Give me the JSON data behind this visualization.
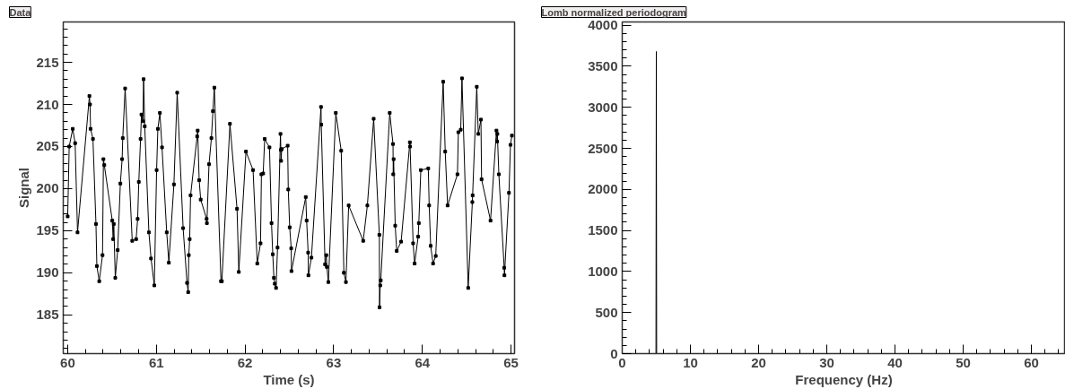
{
  "chart_data": [
    {
      "type": "line",
      "title": "Data",
      "xlabel": "Time (s)",
      "ylabel": "Signal",
      "xlim": [
        59.95,
        65.04
      ],
      "ylim": [
        180.4,
        219.8
      ],
      "xticks": [
        60,
        61,
        62,
        63,
        64,
        65
      ],
      "yticks": [
        185,
        190,
        195,
        200,
        205,
        210,
        215
      ],
      "grid": false,
      "marker": "square",
      "line_style": "solid",
      "series": [
        {
          "color": "#000000",
          "x": [
            60.0,
            60.017,
            60.057,
            60.084,
            60.111,
            60.245,
            60.252,
            60.258,
            60.285,
            60.319,
            60.329,
            60.356,
            60.393,
            60.403,
            60.413,
            60.503,
            60.513,
            60.52,
            60.537,
            60.564,
            60.594,
            60.614,
            60.621,
            60.648,
            60.728,
            60.772,
            60.789,
            60.802,
            60.822,
            60.832,
            60.849,
            60.856,
            60.869,
            60.916,
            60.94,
            60.977,
            61.003,
            61.017,
            61.04,
            61.064,
            61.117,
            61.141,
            61.198,
            61.235,
            61.302,
            61.346,
            61.359,
            61.366,
            61.376,
            61.386,
            61.46,
            61.466,
            61.483,
            61.5,
            61.567,
            61.57,
            61.594,
            61.621,
            61.638,
            61.654,
            61.729,
            61.739,
            61.83,
            61.91,
            61.93,
            62.011,
            62.091,
            62.138,
            62.175,
            62.185,
            62.205,
            62.222,
            62.276,
            62.299,
            62.313,
            62.326,
            62.336,
            62.35,
            62.367,
            62.4,
            62.404,
            62.407,
            62.414,
            62.481,
            62.488,
            62.504,
            62.521,
            62.524,
            62.685,
            62.695,
            62.712,
            62.715,
            62.749,
            62.857,
            62.86,
            62.903,
            62.917,
            62.923,
            62.94,
            63.024,
            63.085,
            63.115,
            63.138,
            63.169,
            63.333,
            63.38,
            63.451,
            63.515,
            63.517,
            63.525,
            63.531,
            63.632,
            63.669,
            63.672,
            63.676,
            63.694,
            63.711,
            63.761,
            63.859,
            63.862,
            63.896,
            63.913,
            63.953,
            63.96,
            63.983,
            64.067,
            64.077,
            64.094,
            64.121,
            64.151,
            64.235,
            64.258,
            64.285,
            64.396,
            64.406,
            64.433,
            64.447,
            64.517,
            64.564,
            64.567,
            64.614,
            64.631,
            64.661,
            64.668,
            64.769,
            64.836,
            64.843,
            64.846,
            64.863,
            64.923,
            64.926,
            64.977,
            64.994,
            65.01
          ],
          "values": [
            196.7,
            205.0,
            207.1,
            205.4,
            194.8,
            211.0,
            210.0,
            207.1,
            205.9,
            195.8,
            190.8,
            189.0,
            192.1,
            203.5,
            202.8,
            196.2,
            194.0,
            195.8,
            189.4,
            192.7,
            200.6,
            203.5,
            206.0,
            211.9,
            193.8,
            194.0,
            196.4,
            200.8,
            205.9,
            208.8,
            208.0,
            213.0,
            207.4,
            194.8,
            191.7,
            188.5,
            202.2,
            207.1,
            209.0,
            204.9,
            194.8,
            191.2,
            200.5,
            211.4,
            195.3,
            188.8,
            187.7,
            192.1,
            194.0,
            199.2,
            206.2,
            206.9,
            201.0,
            198.7,
            196.4,
            195.9,
            202.9,
            206.0,
            209.2,
            212.0,
            189.0,
            189.0,
            207.7,
            197.6,
            190.1,
            204.4,
            202.2,
            191.1,
            193.5,
            201.7,
            201.8,
            205.9,
            204.9,
            195.9,
            192.2,
            189.4,
            188.7,
            188.2,
            193.0,
            206.5,
            204.6,
            203.3,
            204.7,
            205.1,
            199.9,
            195.4,
            192.9,
            190.2,
            199.0,
            196.2,
            192.4,
            189.7,
            191.8,
            209.7,
            207.6,
            191.0,
            192.1,
            190.7,
            188.9,
            209.0,
            204.5,
            190.0,
            188.9,
            198.0,
            193.8,
            198.0,
            208.3,
            194.5,
            185.9,
            188.5,
            189.1,
            209.0,
            205.3,
            201.7,
            203.5,
            195.6,
            192.6,
            193.7,
            205.5,
            205.0,
            193.5,
            191.1,
            194.3,
            195.9,
            202.2,
            202.4,
            198.0,
            193.2,
            191.1,
            192.0,
            212.7,
            204.4,
            198.0,
            201.7,
            206.7,
            207.0,
            213.1,
            188.2,
            198.4,
            199.2,
            212.1,
            206.5,
            208.2,
            201.1,
            196.2,
            206.9,
            205.6,
            206.5,
            201.7,
            190.6,
            189.7,
            199.5,
            205.2,
            206.3
          ]
        }
      ]
    },
    {
      "type": "line",
      "title": "Lomb normalized periodogram",
      "xlabel": "Frequency (Hz)",
      "xlim": [
        0,
        65
      ],
      "ylim": [
        0,
        4040
      ],
      "xticks": [
        0,
        10,
        20,
        30,
        40,
        50,
        60
      ],
      "yticks": [
        0,
        500,
        1000,
        1500,
        2000,
        2500,
        3000,
        3500,
        4000
      ],
      "grid": false,
      "marker": "none",
      "line_style": "solid",
      "series": [
        {
          "color": "#000000",
          "x": [
            0,
            4.95,
            5.0,
            5.05,
            65
          ],
          "values": [
            0,
            0,
            3680,
            0,
            0
          ]
        }
      ]
    }
  ]
}
